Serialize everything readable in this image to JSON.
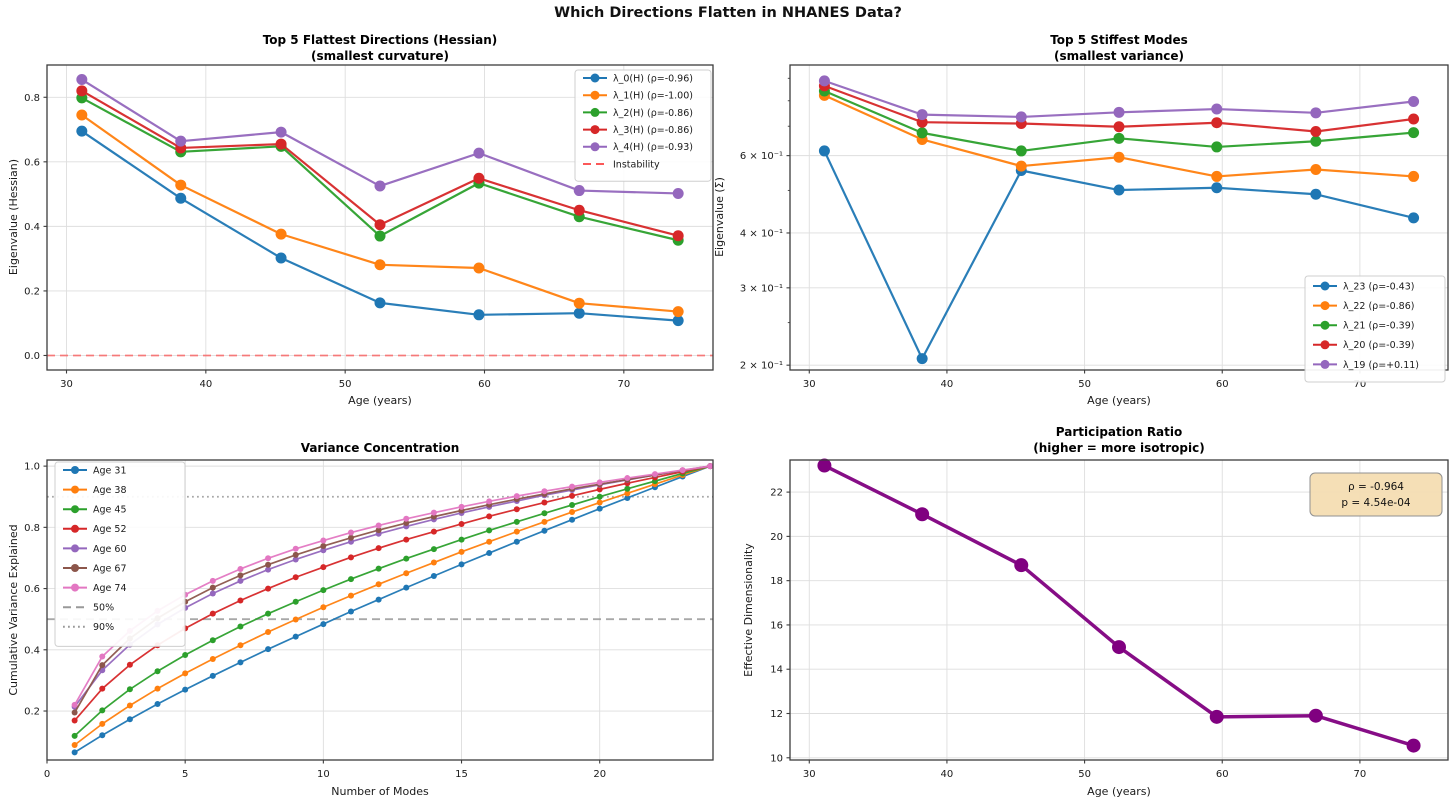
{
  "suptitle": "Which Directions Flatten in NHANES Data?",
  "ages_shown": [
    31,
    38,
    45,
    52,
    60,
    67,
    74
  ],
  "chart_data": [
    {
      "type": "line",
      "name": "flattest-directions",
      "title": "Top 5 Flattest Directions (Hessian)",
      "subtitle": "(smallest curvature)",
      "xlabel": "Age (years)",
      "ylabel": "Eigenvalue (Hessian)",
      "x": [
        31.1,
        38.2,
        45.4,
        52.5,
        59.6,
        66.8,
        73.9
      ],
      "xlim": [
        28.6,
        76.4
      ],
      "ylim": [
        -0.045,
        0.9
      ],
      "yscale": "linear",
      "xticks": [
        30,
        40,
        50,
        60,
        70
      ],
      "xtick_labels": [
        "30",
        "40",
        "50",
        "60",
        "70"
      ],
      "yticks": [
        0.0,
        0.2,
        0.4,
        0.6,
        0.8
      ],
      "ytick_labels": [
        "0.0",
        "0.2",
        "0.4",
        "0.6",
        "0.8"
      ],
      "grid": true,
      "legend": true,
      "series": [
        {
          "name": "λ_0(H) (ρ=-0.96)",
          "color": "#1f77b4",
          "values": [
            0.695,
            0.487,
            0.302,
            0.163,
            0.126,
            0.131,
            0.108
          ]
        },
        {
          "name": "λ_1(H) (ρ=-1.00)",
          "color": "#ff7f0e",
          "values": [
            0.745,
            0.528,
            0.376,
            0.281,
            0.271,
            0.162,
            0.136
          ]
        },
        {
          "name": "λ_2(H) (ρ=-0.86)",
          "color": "#2ca02c",
          "values": [
            0.798,
            0.631,
            0.648,
            0.37,
            0.534,
            0.43,
            0.357
          ]
        },
        {
          "name": "λ_3(H) (ρ=-0.86)",
          "color": "#d62728",
          "values": [
            0.82,
            0.643,
            0.655,
            0.405,
            0.549,
            0.45,
            0.371
          ]
        },
        {
          "name": "λ_4(H) (ρ=-0.93)",
          "color": "#9467bd",
          "values": [
            0.855,
            0.664,
            0.692,
            0.525,
            0.627,
            0.511,
            0.502
          ]
        }
      ],
      "ref_lines": [
        {
          "label": "Instability",
          "y": 0.0,
          "color": "#fb5858",
          "dash": "dashed",
          "opacity": 0.75,
          "in_legend": true
        }
      ]
    },
    {
      "type": "line",
      "name": "stiffest-modes",
      "title": "Top 5 Stiffest Modes",
      "subtitle": "(smallest variance)",
      "xlabel": "Age (years)",
      "ylabel": "Eigenvalue (Σ)",
      "x": [
        31.1,
        38.2,
        45.4,
        52.5,
        59.6,
        66.8,
        73.9
      ],
      "xlim": [
        28.6,
        76.4
      ],
      "ylim": [
        0.195,
        0.965
      ],
      "yscale": "log",
      "xticks": [
        30,
        40,
        50,
        60,
        70
      ],
      "xtick_labels": [
        "30",
        "40",
        "50",
        "60",
        "70"
      ],
      "yticks": [
        0.6,
        0.4,
        0.3,
        0.2
      ],
      "ytick_labels": [
        "6 × 10⁻¹",
        "4 × 10⁻¹",
        "3 × 10⁻¹",
        "2 × 10⁻¹"
      ],
      "minor_yticks": [
        0.9,
        0.8,
        0.7,
        0.5,
        0.25
      ],
      "grid": true,
      "legend": true,
      "series": [
        {
          "name": "λ_23 (ρ=-0.43)",
          "color": "#1f77b4",
          "values": [
            0.615,
            0.207,
            0.555,
            0.501,
            0.507,
            0.49,
            0.433
          ]
        },
        {
          "name": "λ_22 (ρ=-0.86)",
          "color": "#ff7f0e",
          "values": [
            0.823,
            0.653,
            0.568,
            0.595,
            0.538,
            0.558,
            0.538
          ]
        },
        {
          "name": "λ_21 (ρ=-0.39)",
          "color": "#2ca02c",
          "values": [
            0.842,
            0.676,
            0.615,
            0.657,
            0.628,
            0.647,
            0.677
          ]
        },
        {
          "name": "λ_20 (ρ=-0.39)",
          "color": "#d62728",
          "values": [
            0.865,
            0.715,
            0.71,
            0.698,
            0.713,
            0.681,
            0.727
          ]
        },
        {
          "name": "λ_19 (ρ=+0.11)",
          "color": "#9467bd",
          "values": [
            0.888,
            0.744,
            0.735,
            0.753,
            0.766,
            0.751,
            0.797
          ]
        }
      ],
      "ref_lines": []
    },
    {
      "type": "line",
      "name": "variance-concentration",
      "title": "Variance Concentration",
      "subtitle": null,
      "xlabel": "Number of Modes",
      "ylabel": "Cumulative Variance Explained",
      "x": [
        1,
        2,
        3,
        4,
        5,
        6,
        7,
        8,
        9,
        10,
        11,
        12,
        13,
        14,
        15,
        16,
        17,
        18,
        19,
        20,
        21,
        22,
        23,
        24
      ],
      "xlim": [
        0,
        24.1
      ],
      "ylim": [
        0.04,
        1.02
      ],
      "yscale": "linear",
      "xticks": [
        0,
        5,
        10,
        15,
        20
      ],
      "xtick_labels": [
        "0",
        "5",
        "10",
        "15",
        "20"
      ],
      "yticks": [
        0.2,
        0.4,
        0.6,
        0.8,
        1.0
      ],
      "ytick_labels": [
        "0.2",
        "0.4",
        "0.6",
        "0.8",
        "1.0"
      ],
      "grid": true,
      "legend": true,
      "series": [
        {
          "name": "Age 31",
          "color": "#1f77b4",
          "values": [
            0.065,
            0.121,
            0.173,
            0.223,
            0.27,
            0.315,
            0.359,
            0.402,
            0.443,
            0.484,
            0.525,
            0.564,
            0.603,
            0.641,
            0.679,
            0.716,
            0.753,
            0.789,
            0.825,
            0.861,
            0.896,
            0.931,
            0.966,
            1.0
          ]
        },
        {
          "name": "Age 38",
          "color": "#ff7f0e",
          "values": [
            0.089,
            0.158,
            0.218,
            0.273,
            0.323,
            0.37,
            0.415,
            0.458,
            0.499,
            0.539,
            0.577,
            0.614,
            0.65,
            0.685,
            0.72,
            0.753,
            0.786,
            0.818,
            0.85,
            0.881,
            0.911,
            0.941,
            0.971,
            1.0
          ]
        },
        {
          "name": "Age 45",
          "color": "#2ca02c",
          "values": [
            0.119,
            0.202,
            0.271,
            0.33,
            0.383,
            0.431,
            0.476,
            0.518,
            0.557,
            0.595,
            0.631,
            0.665,
            0.698,
            0.729,
            0.76,
            0.79,
            0.818,
            0.846,
            0.873,
            0.9,
            0.926,
            0.951,
            0.976,
            1.0
          ]
        },
        {
          "name": "Age 52",
          "color": "#d62728",
          "values": [
            0.169,
            0.273,
            0.351,
            0.415,
            0.47,
            0.518,
            0.561,
            0.6,
            0.637,
            0.67,
            0.702,
            0.732,
            0.76,
            0.786,
            0.811,
            0.836,
            0.859,
            0.881,
            0.903,
            0.924,
            0.944,
            0.963,
            0.982,
            1.0
          ]
        },
        {
          "name": "Age 60",
          "color": "#9467bd",
          "values": [
            0.214,
            0.333,
            0.417,
            0.483,
            0.537,
            0.584,
            0.625,
            0.662,
            0.695,
            0.725,
            0.753,
            0.779,
            0.803,
            0.826,
            0.847,
            0.867,
            0.886,
            0.905,
            0.922,
            0.939,
            0.955,
            0.971,
            0.986,
            1.0
          ]
        },
        {
          "name": "Age 67",
          "color": "#8c564b",
          "values": [
            0.195,
            0.35,
            0.437,
            0.503,
            0.557,
            0.603,
            0.643,
            0.678,
            0.71,
            0.739,
            0.766,
            0.791,
            0.814,
            0.835,
            0.855,
            0.874,
            0.892,
            0.909,
            0.926,
            0.941,
            0.956,
            0.971,
            0.986,
            1.0
          ]
        },
        {
          "name": "Age 74",
          "color": "#e377c2",
          "values": [
            0.22,
            0.378,
            0.462,
            0.527,
            0.58,
            0.625,
            0.664,
            0.699,
            0.73,
            0.757,
            0.783,
            0.806,
            0.828,
            0.848,
            0.867,
            0.885,
            0.902,
            0.918,
            0.933,
            0.947,
            0.961,
            0.974,
            0.987,
            1.0
          ]
        }
      ],
      "ref_lines": [
        {
          "label": "50%",
          "y": 0.5,
          "color": "#999999",
          "dash": "dashed",
          "opacity": 0.85,
          "in_legend": true
        },
        {
          "label": "90%",
          "y": 0.9,
          "color": "#999999",
          "dash": "dotted",
          "opacity": 0.85,
          "in_legend": true
        }
      ]
    },
    {
      "type": "line",
      "name": "participation-ratio",
      "title": "Participation Ratio",
      "subtitle": "(higher = more isotropic)",
      "xlabel": "Age (years)",
      "ylabel": "Effective Dimensionality",
      "x": [
        31.1,
        38.2,
        45.4,
        52.5,
        59.6,
        66.8,
        73.9
      ],
      "xlim": [
        28.6,
        76.4
      ],
      "ylim": [
        9.9,
        23.45
      ],
      "yscale": "linear",
      "xticks": [
        30,
        40,
        50,
        60,
        70
      ],
      "xtick_labels": [
        "30",
        "40",
        "50",
        "60",
        "70"
      ],
      "yticks": [
        10,
        12,
        14,
        16,
        18,
        20,
        22
      ],
      "ytick_labels": [
        "10",
        "12",
        "14",
        "16",
        "18",
        "20",
        "22"
      ],
      "grid": true,
      "legend": false,
      "series": [
        {
          "name": "Participation Ratio",
          "color": "#800080",
          "values": [
            23.2,
            21.0,
            18.7,
            15.0,
            11.85,
            11.9,
            10.55
          ]
        }
      ],
      "ref_lines": [],
      "annotation": {
        "lines": [
          "ρ = -0.964",
          "p = 4.54e-04"
        ],
        "bg": "#f5deb3",
        "border": "#8c8c8c"
      }
    }
  ]
}
